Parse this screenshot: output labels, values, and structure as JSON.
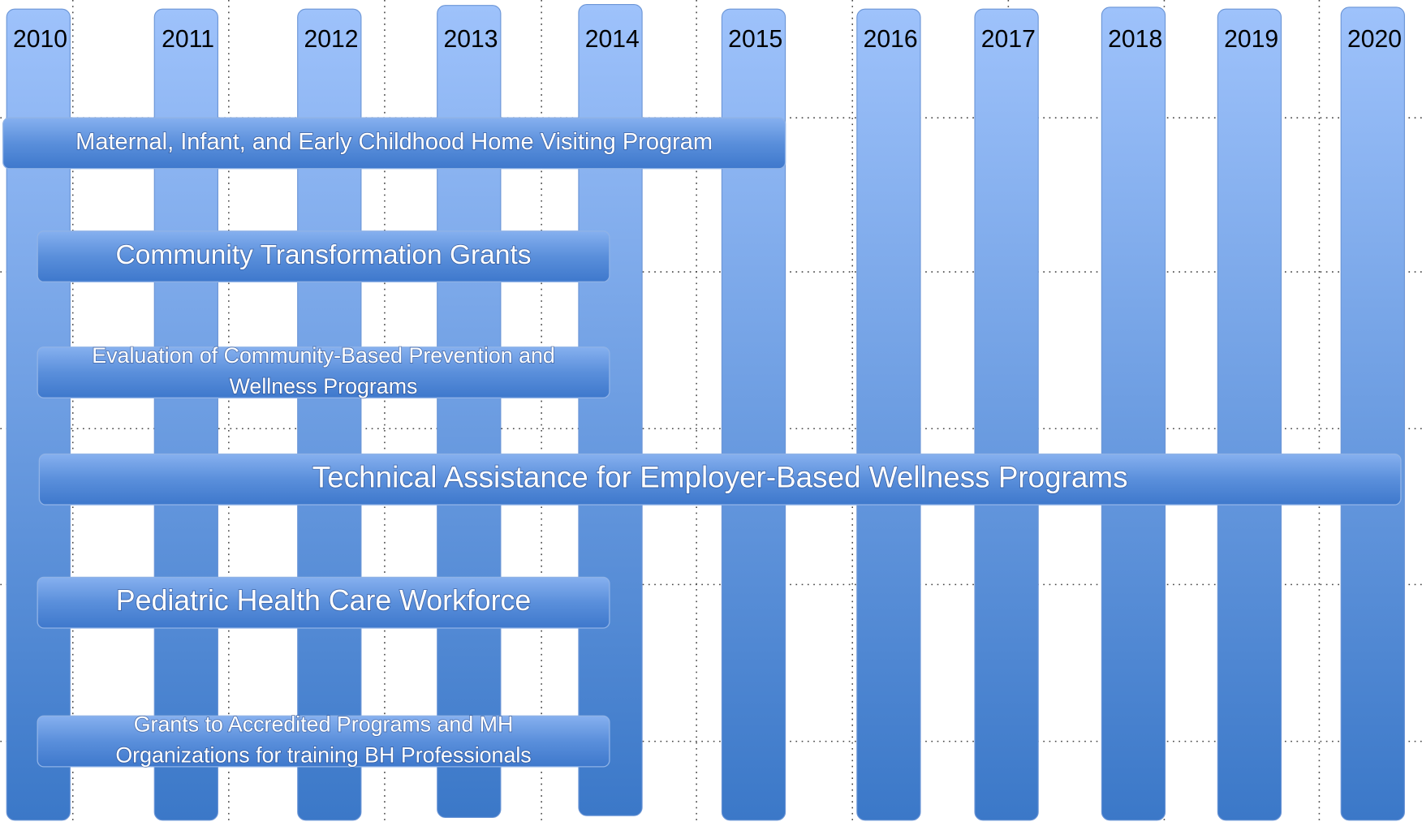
{
  "years": [
    "2010",
    "2011",
    "2012",
    "2013",
    "2014",
    "2015",
    "2016",
    "2017",
    "2018",
    "2019",
    "2020"
  ],
  "programs": [
    {
      "lines": [
        "Maternal, Infant, and Early Childhood Home Visiting Program"
      ]
    },
    {
      "lines": [
        "Community Transformation Grants"
      ]
    },
    {
      "lines": [
        "Evaluation of Community-Based Prevention and",
        "Wellness Programs"
      ]
    },
    {
      "lines": [
        "Technical Assistance for Employer-Based Wellness Programs"
      ]
    },
    {
      "lines": [
        "Pediatric Health Care Workforce"
      ]
    },
    {
      "lines": [
        "Grants to Accredited Programs and MH",
        "Organizations for training BH Professionals"
      ]
    }
  ]
}
